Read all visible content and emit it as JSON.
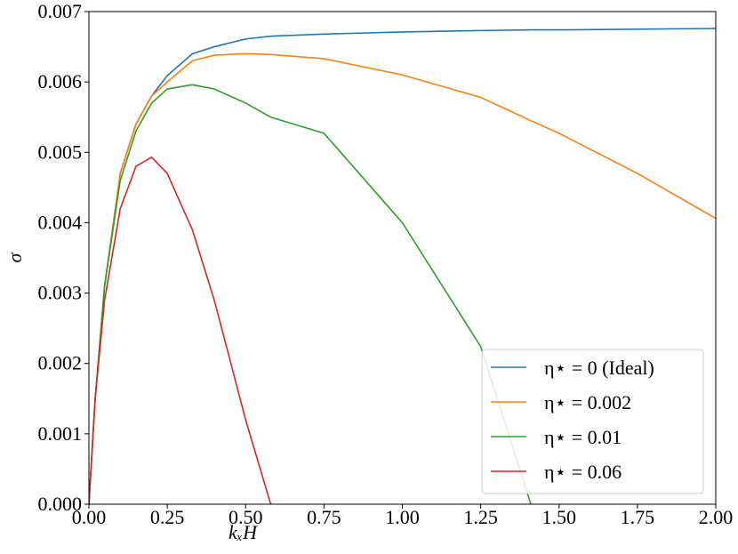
{
  "chart_data": {
    "type": "line",
    "x_label": "kₓH",
    "y_label": "σ",
    "x": [
      0,
      0.02,
      0.05,
      0.1,
      0.15,
      0.2,
      0.25,
      0.33,
      0.4,
      0.5,
      0.58,
      0.75,
      1.0,
      1.25,
      1.41,
      1.5,
      1.75,
      2.0
    ],
    "series": [
      {
        "name": "η⋆ = 0 (Ideal)",
        "color": "#1f77b4",
        "values": [
          0,
          0.0015,
          0.0031,
          0.0047,
          0.0054,
          0.0058,
          0.00609,
          0.0064,
          0.0065,
          0.00661,
          0.00665,
          0.00668,
          0.00671,
          0.00673,
          0.00674,
          0.00674,
          0.00675,
          0.00676
        ]
      },
      {
        "name": "η⋆ = 0.002",
        "color": "#ff7f0e",
        "values": [
          0,
          0.0015,
          0.0031,
          0.0047,
          0.0054,
          0.0058,
          0.006,
          0.0063,
          0.00638,
          0.0064,
          0.00639,
          0.00633,
          0.0061,
          0.00578,
          0.00545,
          0.00527,
          0.0047,
          0.00406
        ]
      },
      {
        "name": "η⋆ = 0.01",
        "color": "#2ca02c",
        "values": [
          0,
          0.0015,
          0.0031,
          0.0046,
          0.0053,
          0.0057,
          0.0059,
          0.00596,
          0.0059,
          0.0057,
          0.0055,
          0.00527,
          0.004,
          0.00224,
          0,
          null,
          null,
          null
        ]
      },
      {
        "name": "η⋆ = 0.06",
        "color": "#d62728",
        "values": [
          0,
          0.0015,
          0.0029,
          0.0042,
          0.0048,
          0.00493,
          0.0047,
          0.0039,
          0.0029,
          0.0012,
          0,
          null,
          null,
          null,
          null,
          null,
          null,
          null
        ]
      }
    ],
    "xlim": [
      0,
      2.0
    ],
    "ylim": [
      0,
      0.007
    ],
    "xticks": [
      {
        "value": 0,
        "label": "0.00"
      },
      0.25,
      {
        "value": 0.5,
        "label": "0.50"
      },
      0.75,
      {
        "value": 1,
        "label": "1.00"
      },
      1.25,
      {
        "value": 1.5,
        "label": "1.50"
      },
      1.75,
      {
        "value": 2,
        "label": "2.00"
      }
    ],
    "yticks": [
      {
        "value": 0,
        "label": "0.000"
      },
      0.001,
      0.002,
      0.003,
      0.004,
      0.005,
      0.006,
      0.007
    ],
    "legend": "lower right"
  }
}
